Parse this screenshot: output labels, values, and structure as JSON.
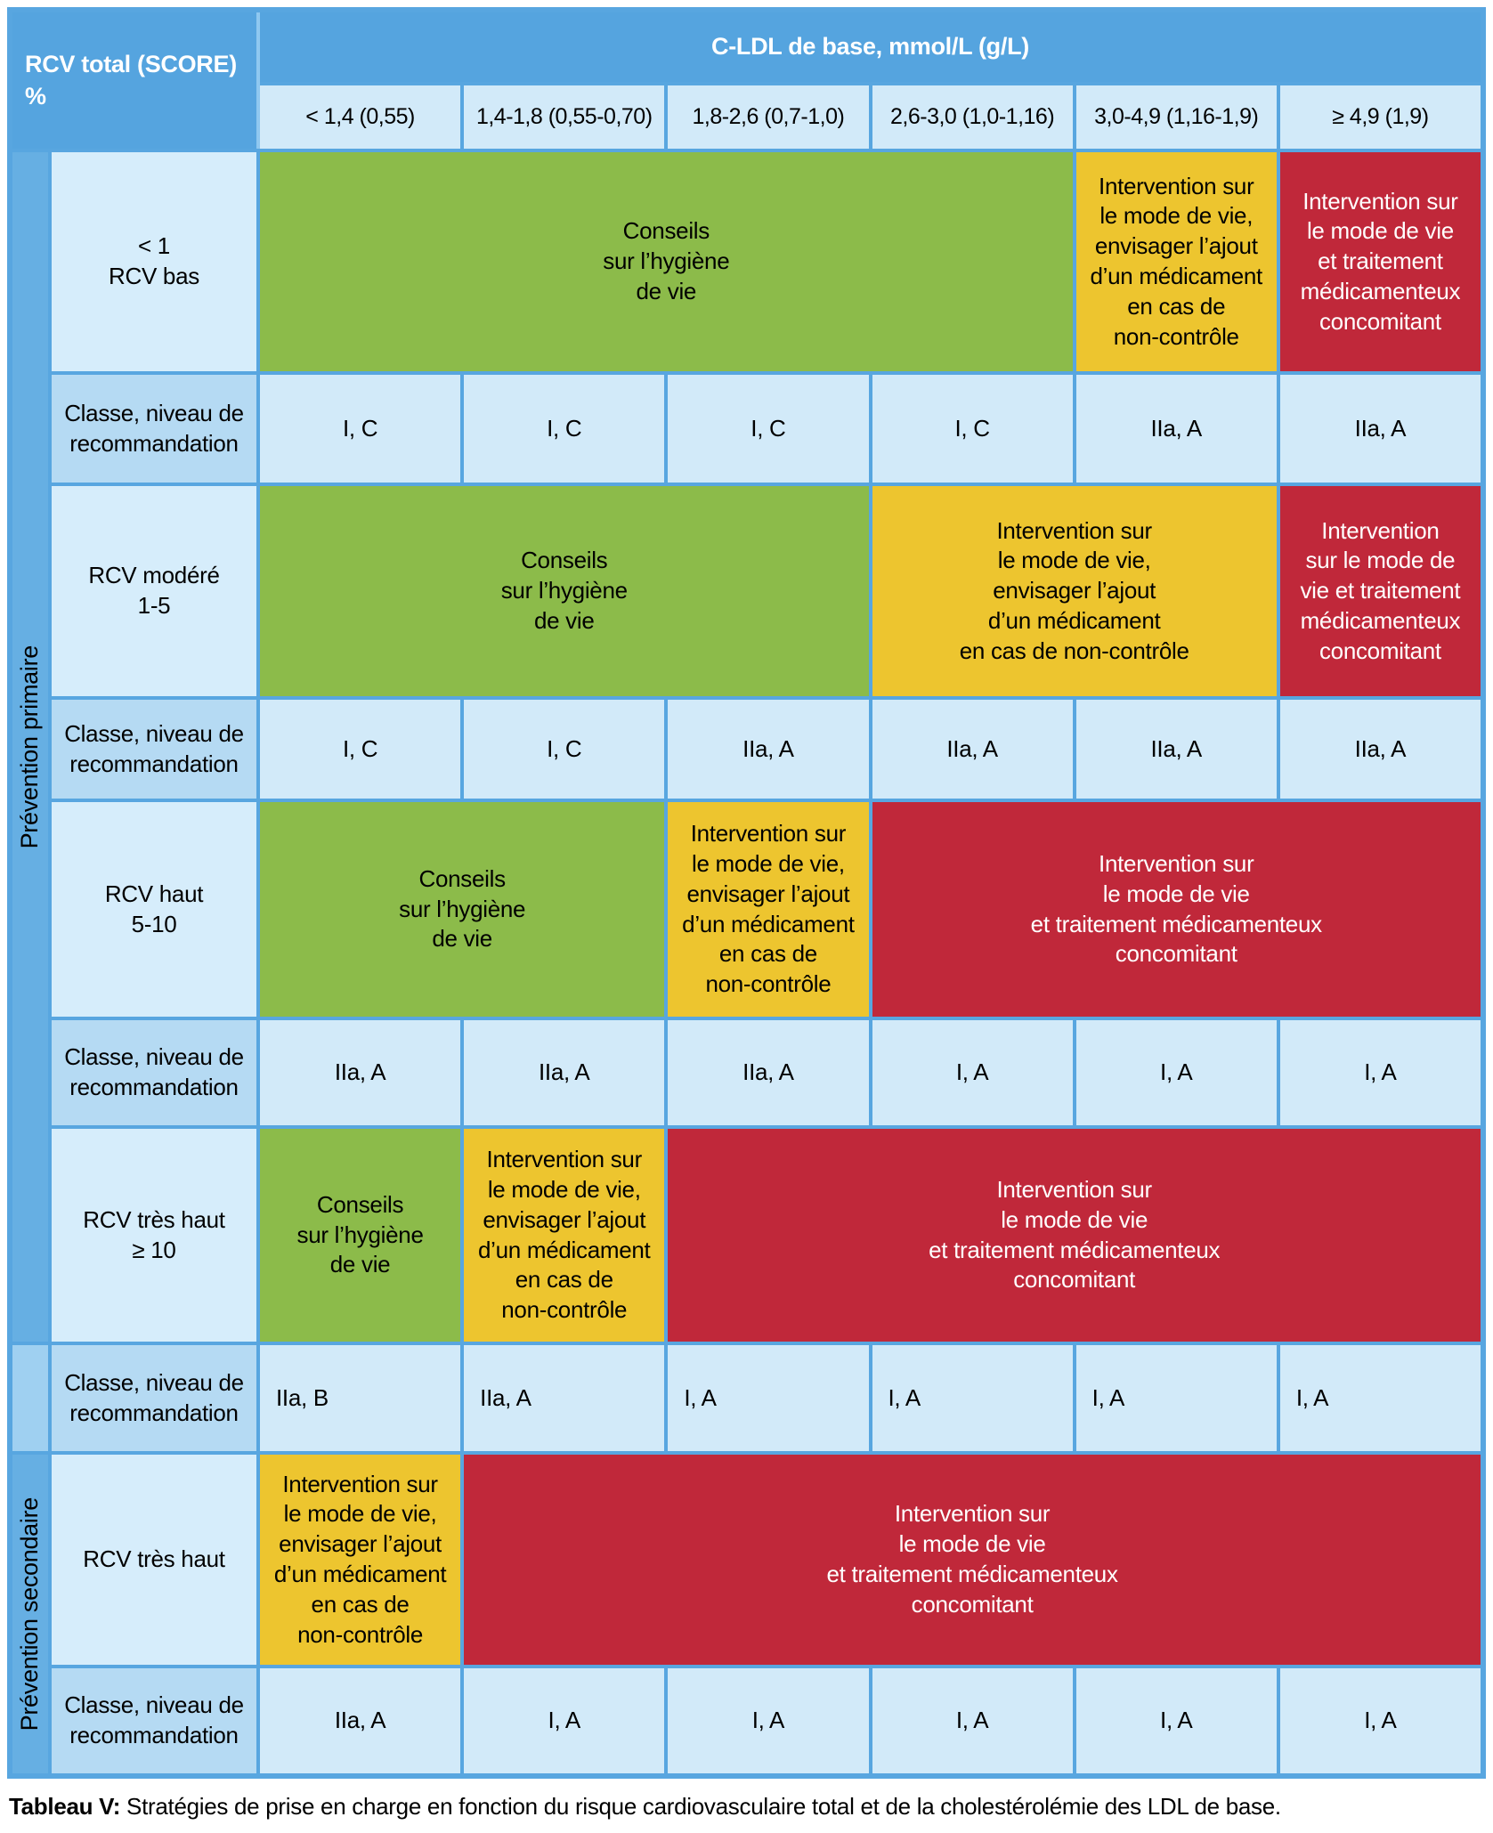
{
  "table": {
    "corner_header": "RCV total (SCORE) %",
    "top_header": "C-LDL de base, mmol/L (g/L)",
    "column_headers": [
      "< 1,4 (0,55)",
      "1,4-1,8 (0,55-0,70)",
      "1,8-2,6 (0,7-1,0)",
      "2,6-3,0 (1,0-1,16)",
      "3,0-4,9 (1,16-1,9)",
      "≥ 4,9 (1,9)"
    ],
    "sidebar": {
      "primary": "Prévention primaire",
      "secondary": "Prévention secondaire"
    },
    "class_row_label": "Classe, niveau de\nrecommandation",
    "rows": [
      {
        "label": "< 1\nRCV bas",
        "cells": [
          {
            "type": "green",
            "text": "Conseils\nsur l’hygiène\nde vie"
          },
          {
            "type": "yellow",
            "text": "Intervention sur\nle mode de vie,\nenvisager l’ajout\nd’un médicament\nen cas de\nnon-contrôle"
          },
          {
            "type": "red",
            "text": "Intervention sur\nle mode de vie\net traitement\nmédicamenteux\nconcomitant"
          }
        ],
        "class_values": [
          "I, C",
          "I, C",
          "I, C",
          "I, C",
          "IIa, A",
          "IIa, A"
        ]
      },
      {
        "label": "RCV modéré\n1-5",
        "cells": [
          {
            "type": "green",
            "text": "Conseils\nsur l’hygiène\nde vie"
          },
          {
            "type": "yellow",
            "text": "Intervention sur\nle mode de vie,\nenvisager l’ajout\nd’un médicament\nen cas de non-contrôle"
          },
          {
            "type": "red",
            "text": "Intervention\nsur le mode de\nvie et traitement\nmédicamenteux\nconcomitant"
          }
        ],
        "class_values": [
          "I, C",
          "I, C",
          "IIa, A",
          "IIa, A",
          "IIa, A",
          "IIa, A"
        ]
      },
      {
        "label": "RCV haut\n5-10",
        "cells": [
          {
            "type": "green",
            "text": "Conseils\nsur l’hygiène\nde vie"
          },
          {
            "type": "yellow",
            "text": "Intervention sur\nle mode de vie,\nenvisager l’ajout\nd’un médicament\nen cas de\nnon-contrôle"
          },
          {
            "type": "red",
            "text": "Intervention sur\nle mode de vie\net traitement médicamenteux\nconcomitant"
          }
        ],
        "class_values": [
          "IIa, A",
          "IIa, A",
          "IIa, A",
          "I, A",
          "I, A",
          "I, A"
        ]
      },
      {
        "label": "RCV très haut\n≥ 10",
        "cells": [
          {
            "type": "green",
            "text": "Conseils\nsur l’hygiène\nde vie"
          },
          {
            "type": "yellow",
            "text": "Intervention sur\nle mode de vie,\nenvisager l’ajout\nd’un médicament\nen cas de\nnon-contrôle"
          },
          {
            "type": "red",
            "text": "Intervention sur\nle mode de vie\net traitement médicamenteux\nconcomitant"
          }
        ],
        "class_values": [
          "IIa, B",
          "IIa, A",
          "I, A",
          "I, A",
          "I, A",
          "I, A"
        ]
      },
      {
        "label": "RCV très haut",
        "cells": [
          {
            "type": "yellow",
            "text": "Intervention sur\nle mode de vie,\nenvisager l’ajout\nd’un médicament\nen cas de\nnon-contrôle"
          },
          {
            "type": "red",
            "text": "Intervention sur\nle mode de vie\net traitement médicamenteux\nconcomitant"
          }
        ],
        "class_values": [
          "IIa, A",
          "I, A",
          "I, A",
          "I, A",
          "I, A",
          "I, A"
        ]
      }
    ]
  },
  "caption": {
    "label": "Tableau V:",
    "text": " Stratégies de prise en charge en fonction du risque cardiovasculaire total et de la cholestérolémie des LDL de base."
  },
  "colors": {
    "green": "#8CBB4A",
    "yellow": "#EDC52F",
    "red": "#C0283A",
    "header_blue": "#55A4DF",
    "grid_blue": "#58A6E0",
    "sidebar_blue": "#66AFE3",
    "cell_light_blue": "#D2EAF9",
    "class_label_blue": "#B5DAF3"
  }
}
